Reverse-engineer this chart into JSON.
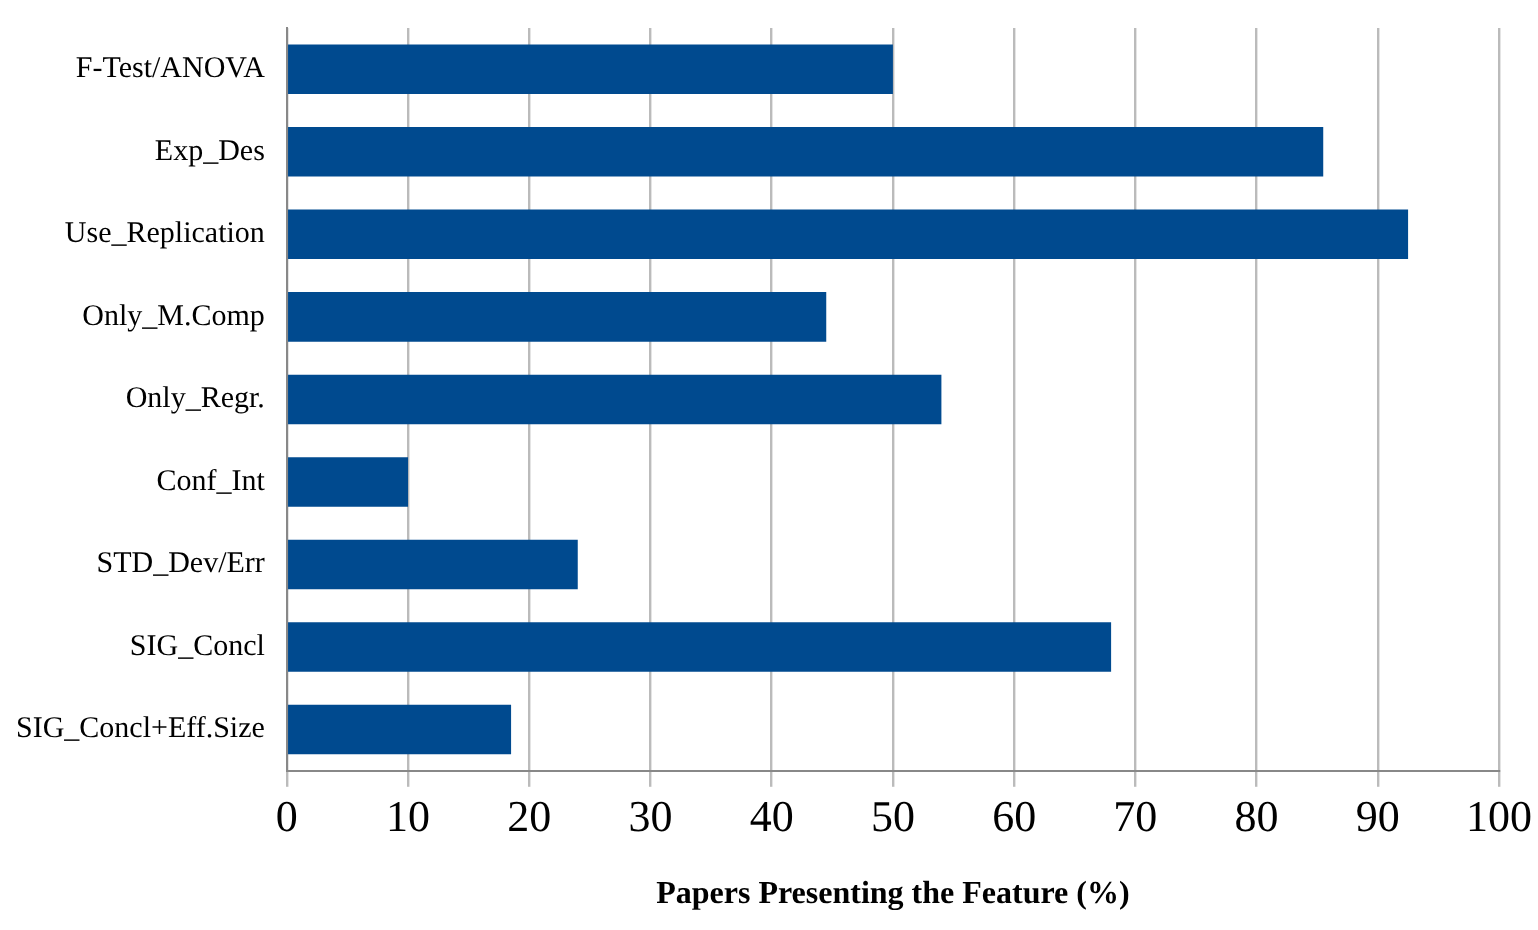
{
  "chart_data": {
    "type": "bar",
    "orientation": "horizontal",
    "xlabel": "Papers Presenting the Feature (%)",
    "categories": [
      "F-Test/ANOVA",
      "Exp_Des",
      "Use_Replication",
      "Only_M.Comp",
      "Only_Regr.",
      "Conf_Int",
      "STD_Dev/Err",
      "SIG_Concl",
      "SIG_Concl+Eff.Size"
    ],
    "values": [
      50,
      85.5,
      92.5,
      44.5,
      54,
      10,
      24,
      68,
      18.5
    ],
    "color": "#004a8f",
    "xlim": [
      0,
      100
    ],
    "xticks": [
      0,
      10,
      20,
      30,
      40,
      50,
      60,
      70,
      80,
      90,
      100
    ],
    "grid": "x",
    "legend": false
  }
}
